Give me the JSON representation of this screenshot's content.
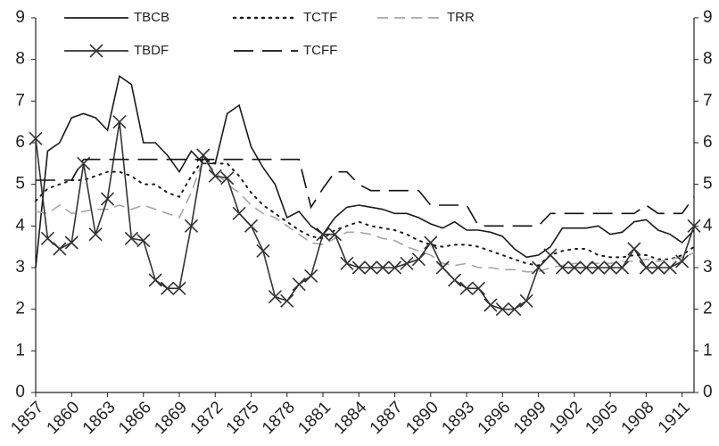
{
  "chart_data": {
    "type": "line",
    "x": [
      1857,
      1858,
      1859,
      1860,
      1861,
      1862,
      1863,
      1864,
      1865,
      1866,
      1867,
      1868,
      1869,
      1870,
      1871,
      1872,
      1873,
      1874,
      1875,
      1876,
      1877,
      1878,
      1879,
      1880,
      1881,
      1882,
      1883,
      1884,
      1885,
      1886,
      1887,
      1888,
      1889,
      1890,
      1891,
      1892,
      1893,
      1894,
      1895,
      1896,
      1897,
      1898,
      1899,
      1900,
      1901,
      1902,
      1903,
      1904,
      1905,
      1906,
      1907,
      1908,
      1909,
      1910,
      1911,
      1912
    ],
    "xlim": [
      1857,
      1912
    ],
    "xticks": [
      1857,
      1860,
      1863,
      1866,
      1869,
      1872,
      1875,
      1878,
      1881,
      1884,
      1887,
      1890,
      1893,
      1896,
      1899,
      1902,
      1905,
      1908,
      1911
    ],
    "ylim": [
      0,
      9
    ],
    "yticks": [
      0,
      1,
      2,
      3,
      4,
      5,
      6,
      7,
      8,
      9
    ],
    "y2lim": [
      0,
      9
    ],
    "y2ticks": [
      0,
      1,
      2,
      3,
      4,
      5,
      6,
      7,
      8,
      9
    ],
    "legend": "upper-left",
    "series": [
      {
        "name": "TBCB",
        "color": "#1a1a1a",
        "line_style": "solid",
        "values": [
          3.0,
          5.8,
          6.0,
          6.6,
          6.7,
          6.6,
          6.3,
          7.6,
          7.4,
          6.0,
          6.0,
          5.7,
          5.3,
          5.8,
          5.5,
          5.5,
          6.7,
          6.9,
          5.9,
          5.4,
          5.0,
          4.2,
          4.35,
          4.0,
          3.8,
          4.2,
          4.45,
          4.5,
          4.45,
          4.4,
          4.3,
          4.3,
          4.2,
          4.05,
          3.95,
          4.1,
          3.9,
          3.9,
          3.85,
          3.75,
          3.45,
          3.25,
          3.3,
          3.5,
          3.95,
          3.95,
          3.95,
          4.0,
          3.8,
          3.85,
          4.1,
          4.15,
          3.9,
          3.8,
          3.6,
          3.9
        ]
      },
      {
        "name": "TCTF",
        "color": "#1a1a1a",
        "line_style": "dotted",
        "values": [
          4.6,
          4.9,
          5.0,
          5.1,
          5.1,
          5.2,
          5.3,
          5.3,
          5.2,
          5.0,
          5.0,
          4.8,
          4.7,
          5.2,
          5.6,
          5.5,
          5.5,
          5.2,
          4.8,
          4.5,
          4.3,
          4.1,
          3.9,
          3.75,
          3.7,
          3.9,
          4.0,
          4.1,
          4.0,
          3.95,
          3.9,
          3.8,
          3.65,
          3.55,
          3.5,
          3.55,
          3.55,
          3.5,
          3.4,
          3.3,
          3.2,
          3.1,
          3.05,
          3.3,
          3.4,
          3.45,
          3.45,
          3.3,
          3.25,
          3.25,
          3.3,
          3.3,
          3.2,
          3.2,
          3.3,
          3.5
        ]
      },
      {
        "name": "TRR",
        "color": "#a6a6a6",
        "line_style": "dashed",
        "values": [
          4.35,
          4.3,
          4.5,
          4.3,
          4.35,
          4.4,
          4.4,
          4.5,
          4.4,
          4.5,
          4.4,
          4.3,
          4.2,
          4.8,
          5.6,
          5.3,
          5.0,
          4.8,
          4.5,
          4.3,
          4.2,
          4.0,
          3.8,
          3.6,
          3.55,
          3.7,
          3.85,
          3.85,
          3.8,
          3.7,
          3.65,
          3.5,
          3.4,
          3.3,
          3.1,
          3.05,
          3.1,
          3.0,
          3.0,
          2.95,
          2.95,
          2.9,
          2.9,
          3.0,
          3.05,
          3.1,
          3.1,
          3.1,
          3.1,
          3.15,
          3.15,
          3.2,
          3.15,
          3.2,
          3.25,
          3.35
        ]
      },
      {
        "name": "TBDF",
        "color": "#333333",
        "line_style": "solid",
        "marker": "x",
        "values": [
          6.1,
          3.7,
          3.45,
          3.6,
          5.5,
          3.8,
          4.65,
          6.5,
          3.7,
          3.65,
          2.7,
          2.5,
          2.5,
          4.0,
          5.7,
          5.2,
          5.15,
          4.3,
          4.0,
          3.4,
          2.3,
          2.2,
          2.6,
          2.8,
          3.8,
          3.8,
          3.1,
          3.0,
          3.0,
          3.0,
          3.0,
          3.1,
          3.2,
          3.6,
          3.0,
          2.7,
          2.5,
          2.5,
          2.1,
          2.0,
          2.0,
          2.2,
          3.0,
          3.3,
          3.0,
          3.0,
          3.0,
          3.0,
          3.0,
          3.0,
          3.45,
          3.0,
          3.0,
          3.0,
          3.15,
          4.0
        ]
      },
      {
        "name": "TCFF",
        "color": "#111111",
        "line_style": "long-dashed",
        "values": [
          5.1,
          5.1,
          5.1,
          5.1,
          5.6,
          5.6,
          5.6,
          5.6,
          5.6,
          5.6,
          5.6,
          5.6,
          5.6,
          5.6,
          5.6,
          5.6,
          5.6,
          5.6,
          5.6,
          5.6,
          5.6,
          5.6,
          5.6,
          4.45,
          4.9,
          5.3,
          5.3,
          5.0,
          4.85,
          4.85,
          4.85,
          4.85,
          4.85,
          4.5,
          4.5,
          4.5,
          4.5,
          4.0,
          4.0,
          4.0,
          4.0,
          4.0,
          4.0,
          4.3,
          4.3,
          4.3,
          4.3,
          4.3,
          4.3,
          4.3,
          4.3,
          4.5,
          4.3,
          4.3,
          4.3,
          4.7
        ]
      }
    ]
  }
}
